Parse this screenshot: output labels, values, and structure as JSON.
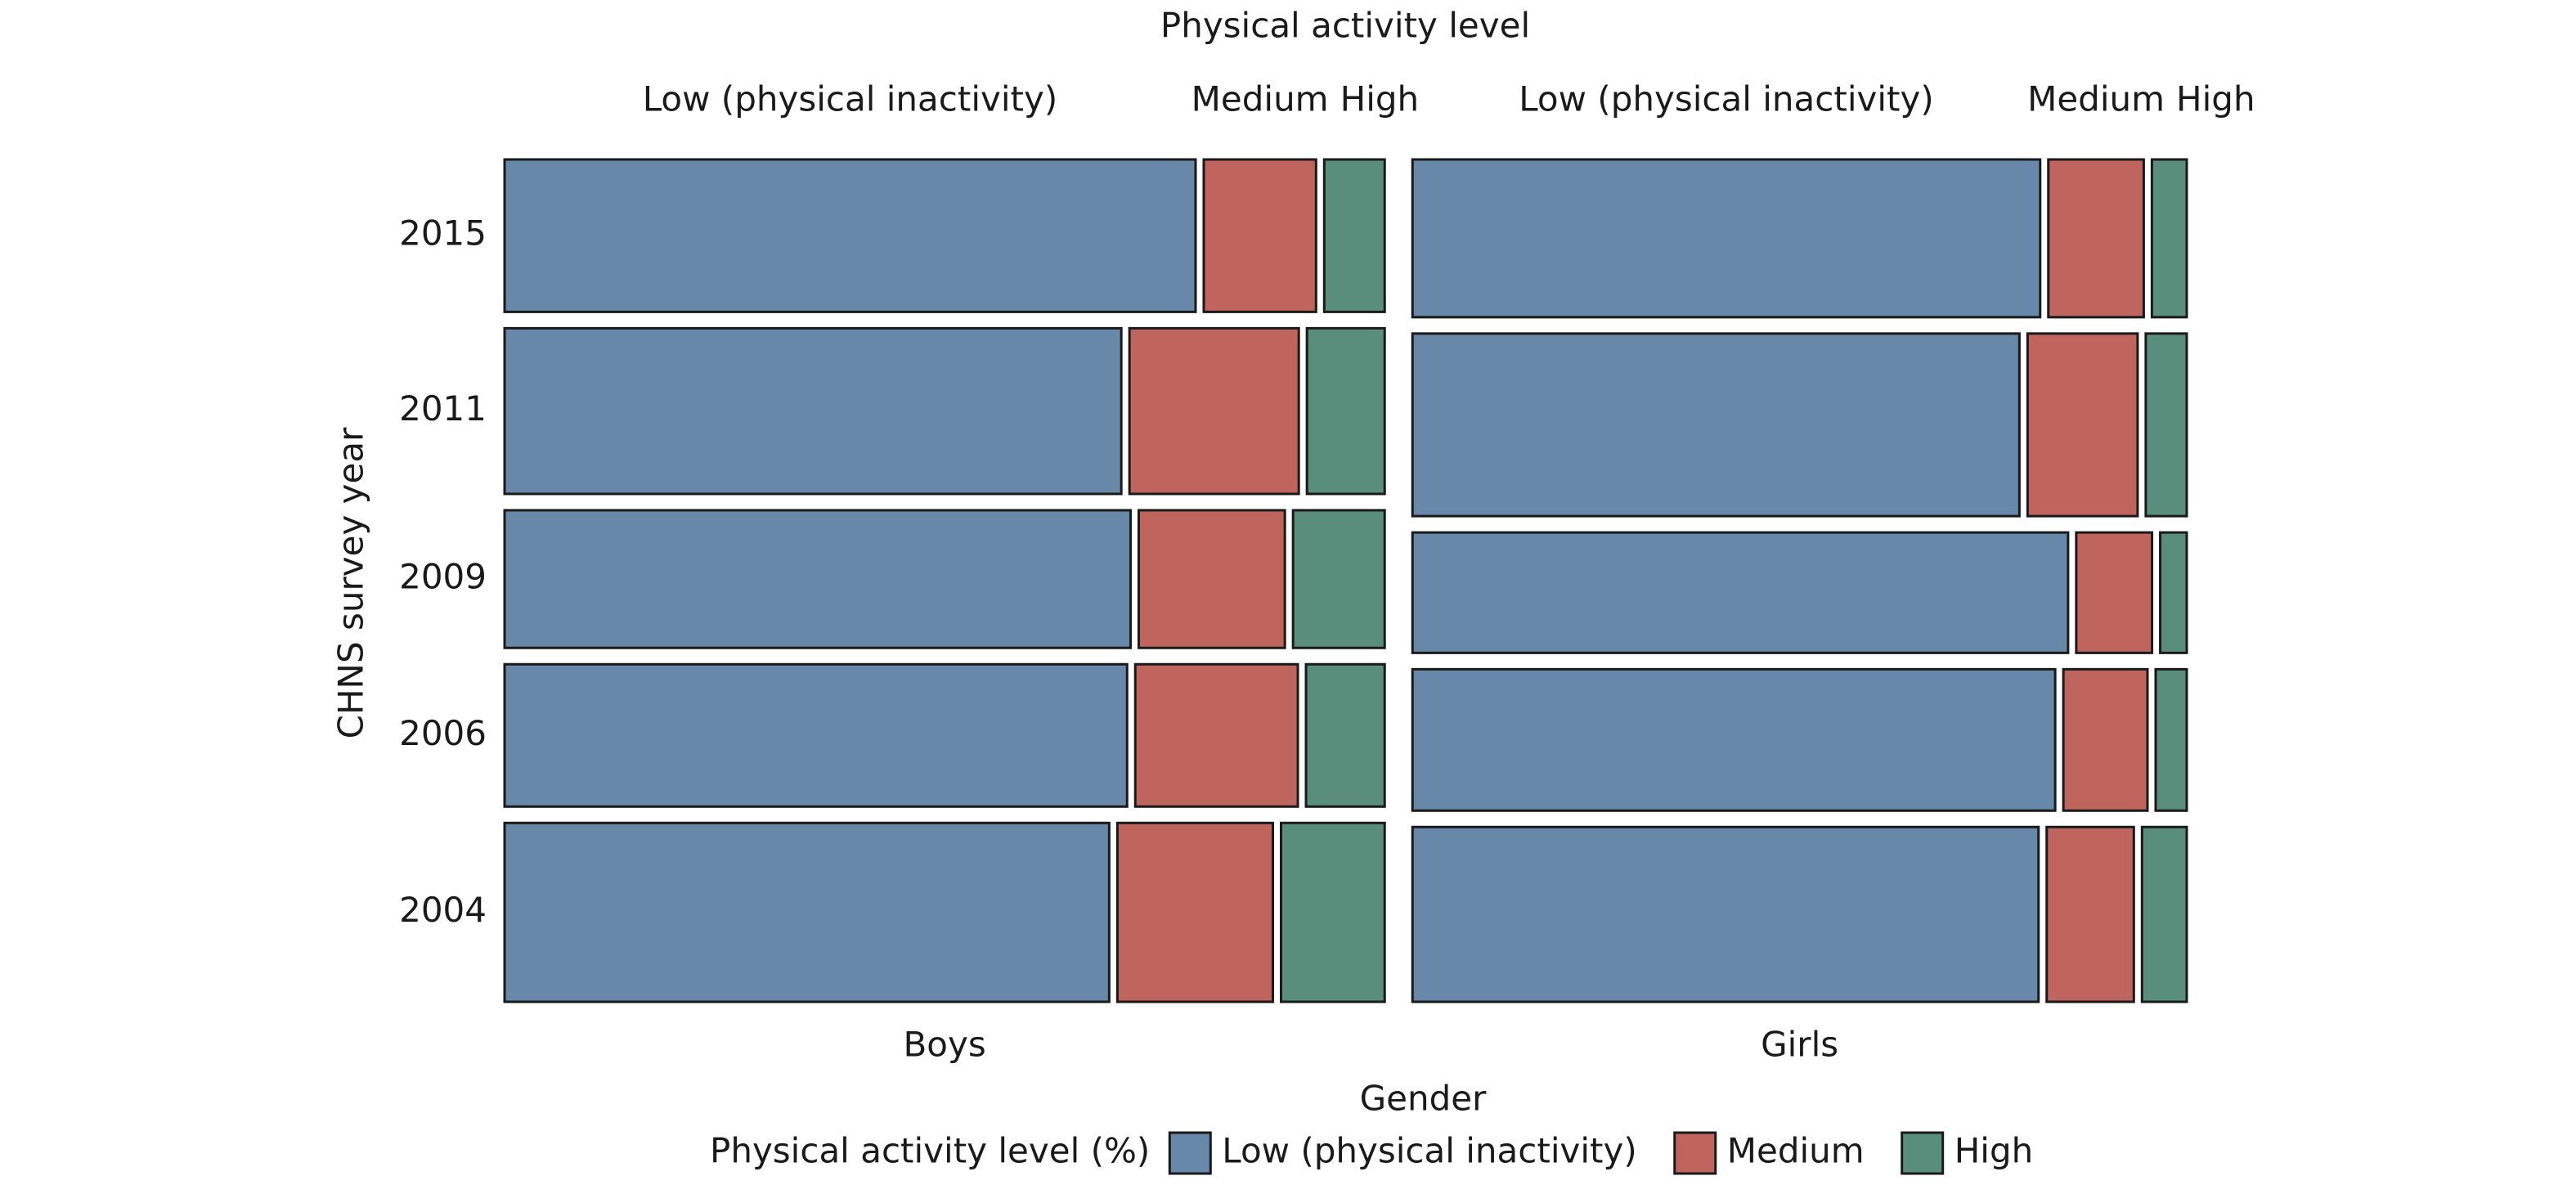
{
  "chart_data": {
    "type": "mosaic",
    "title": "Physical activity level",
    "x_label": "Gender",
    "y_label": "CHNS survey year",
    "legend_title": "Physical activity level (%)",
    "legend_position": "bottom",
    "categories": [
      "2015",
      "2011",
      "2009",
      "2006",
      "2004"
    ],
    "series": [
      {
        "name": "Low (physical inactivity)",
        "color": "#6788a8"
      },
      {
        "name": "Medium",
        "color": "#c0645e"
      },
      {
        "name": "High",
        "color": "#5a8e7c"
      }
    ],
    "groups": [
      {
        "name": "Boys",
        "share": 53.2,
        "row_shares": [
          19.6,
          21.3,
          17.7,
          18.3,
          23.0
        ],
        "values": [
          [
            80.0,
            71.4,
            72.4,
            72.0,
            70.0
          ],
          [
            13.0,
            19.6,
            16.9,
            18.8,
            18.0
          ],
          [
            7.0,
            9.0,
            10.6,
            9.1,
            12.0
          ]
        ]
      },
      {
        "name": "Girls",
        "share": 46.8,
        "row_shares": [
          20.3,
          23.5,
          15.5,
          18.2,
          22.5
        ],
        "values": [
          [
            82.9,
            80.0,
            86.5,
            84.8,
            82.6
          ],
          [
            12.6,
            14.5,
            10.0,
            11.1,
            11.5
          ],
          [
            4.6,
            5.4,
            3.5,
            4.1,
            5.9
          ]
        ]
      }
    ]
  }
}
